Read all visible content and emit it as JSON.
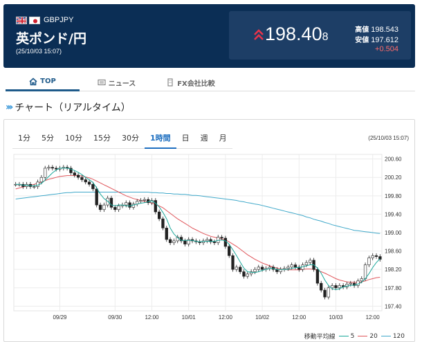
{
  "header": {
    "pair_code": "GBPJPY",
    "pair_name": "英ポンド/円",
    "timestamp": "(25/10/03 15:07)",
    "price_main": "198.40",
    "price_small": "8",
    "high_label": "高値",
    "high_value": "198.543",
    "low_label": "安値",
    "low_value": "197.612",
    "change": "+0.504",
    "up_color": "#e8334a"
  },
  "tabs": [
    {
      "label": "TOP",
      "icon": "home-icon",
      "active": true
    },
    {
      "label": "ニュース",
      "icon": "newspaper-icon",
      "active": false
    },
    {
      "label": "FX会社比較",
      "icon": "building-icon",
      "active": false
    }
  ],
  "section": {
    "title": "チャート（リアルタイム）"
  },
  "chart": {
    "range_tabs": [
      "1分",
      "5分",
      "10分",
      "15分",
      "30分",
      "1時間",
      "日",
      "週",
      "月"
    ],
    "active_range": "1時間",
    "timestamp": "(25/10/03 15:07)",
    "legend": {
      "label": "移動平均線",
      "items": [
        {
          "name": "5",
          "color": "#1aa79a"
        },
        {
          "name": "20",
          "color": "#e0555a"
        },
        {
          "name": "120",
          "color": "#3fa8c9"
        }
      ]
    }
  },
  "chart_data": {
    "type": "candlestick",
    "ylim": [
      197.3,
      200.7
    ],
    "yticks": [
      200.6,
      200.2,
      199.8,
      199.4,
      199.0,
      198.6,
      198.2,
      197.8,
      197.4
    ],
    "ytick_labels": [
      "200.60",
      "200.20",
      "199.80",
      "199.40",
      "199.00",
      "198.60",
      "198.20",
      "197.80",
      "197.40"
    ],
    "xticks": [
      {
        "label": "09/29",
        "index": 12
      },
      {
        "label": "09/30",
        "index": 27
      },
      {
        "label": "12:00",
        "index": 37
      },
      {
        "label": "10/01",
        "index": 47
      },
      {
        "label": "12:00",
        "index": 57
      },
      {
        "label": "10/02",
        "index": 67
      },
      {
        "label": "12:00",
        "index": 77
      },
      {
        "label": "10/03",
        "index": 87
      },
      {
        "label": "12:00",
        "index": 97
      }
    ],
    "n_candles": 100,
    "close": [
      200.05,
      200.05,
      200.0,
      200.05,
      200.0,
      200.0,
      200.1,
      200.2,
      200.4,
      200.42,
      200.4,
      200.38,
      200.4,
      200.42,
      200.4,
      200.3,
      200.25,
      200.2,
      200.15,
      200.1,
      200.05,
      199.95,
      199.6,
      199.5,
      199.6,
      199.75,
      199.55,
      199.5,
      199.58,
      199.6,
      199.65,
      199.55,
      199.62,
      199.68,
      199.7,
      199.72,
      199.65,
      199.7,
      199.45,
      199.3,
      199.1,
      198.85,
      198.78,
      198.82,
      198.9,
      198.82,
      198.75,
      198.85,
      198.82,
      198.8,
      198.78,
      198.82,
      198.85,
      198.8,
      198.78,
      198.9,
      198.88,
      198.7,
      198.5,
      198.2,
      198.25,
      198.15,
      198.05,
      198.1,
      198.15,
      198.2,
      198.25,
      198.2,
      198.22,
      198.25,
      198.2,
      198.15,
      198.2,
      198.22,
      198.25,
      198.3,
      198.25,
      198.2,
      198.3,
      198.35,
      198.4,
      198.2,
      197.9,
      197.75,
      197.6,
      197.8,
      197.85,
      197.8,
      197.85,
      197.82,
      197.88,
      197.9,
      197.85,
      197.95,
      198.0,
      198.3,
      198.45,
      198.5,
      198.48,
      198.42
    ],
    "ma5": [
      200.05,
      200.05,
      200.03,
      200.03,
      200.02,
      200.02,
      200.03,
      200.07,
      200.14,
      200.22,
      200.3,
      200.36,
      200.4,
      200.4,
      200.4,
      200.38,
      200.35,
      200.31,
      200.26,
      200.2,
      200.15,
      200.09,
      199.97,
      199.84,
      199.74,
      199.68,
      199.6,
      199.58,
      199.6,
      199.6,
      199.58,
      199.58,
      199.6,
      199.62,
      199.64,
      199.65,
      199.67,
      199.69,
      199.64,
      199.56,
      199.44,
      199.3,
      199.1,
      198.97,
      198.89,
      198.83,
      198.83,
      198.83,
      198.83,
      198.81,
      198.8,
      198.81,
      198.81,
      198.81,
      198.81,
      198.83,
      198.84,
      198.82,
      198.75,
      198.63,
      198.5,
      198.36,
      198.23,
      198.15,
      198.14,
      198.13,
      198.15,
      198.18,
      198.2,
      198.22,
      198.22,
      198.2,
      198.2,
      198.2,
      198.2,
      198.22,
      198.24,
      198.24,
      198.26,
      198.28,
      198.3,
      198.3,
      198.23,
      198.12,
      197.97,
      197.85,
      197.78,
      197.76,
      197.78,
      197.82,
      197.84,
      197.85,
      197.86,
      197.88,
      197.92,
      198.0,
      198.11,
      198.24,
      198.35,
      198.43
    ],
    "ma20": [
      199.95,
      199.97,
      199.99,
      200.01,
      200.03,
      200.05,
      200.07,
      200.1,
      200.13,
      200.16,
      200.18,
      200.2,
      200.22,
      200.23,
      200.24,
      200.24,
      200.24,
      200.24,
      200.23,
      200.21,
      200.19,
      200.16,
      200.12,
      200.08,
      200.04,
      200.0,
      199.96,
      199.92,
      199.88,
      199.84,
      199.8,
      199.77,
      199.74,
      199.72,
      199.7,
      199.68,
      199.66,
      199.64,
      199.62,
      199.58,
      199.54,
      199.48,
      199.42,
      199.36,
      199.3,
      199.25,
      199.2,
      199.15,
      199.1,
      199.06,
      199.02,
      198.98,
      198.95,
      198.92,
      198.9,
      198.88,
      198.86,
      198.84,
      198.8,
      198.75,
      198.7,
      198.64,
      198.58,
      198.52,
      198.47,
      198.42,
      198.38,
      198.34,
      198.31,
      198.28,
      198.25,
      198.23,
      198.21,
      198.2,
      198.19,
      198.19,
      198.19,
      198.19,
      198.2,
      198.21,
      198.21,
      198.2,
      198.18,
      198.15,
      198.12,
      198.08,
      198.04,
      198.0,
      197.97,
      197.95,
      197.93,
      197.92,
      197.92,
      197.92,
      197.93,
      197.95,
      197.98,
      198.0,
      198.02,
      198.03
    ],
    "ma120": [
      199.73,
      199.74,
      199.75,
      199.76,
      199.77,
      199.78,
      199.79,
      199.8,
      199.81,
      199.82,
      199.83,
      199.84,
      199.85,
      199.86,
      199.87,
      199.87,
      199.88,
      199.88,
      199.88,
      199.88,
      199.88,
      199.88,
      199.88,
      199.88,
      199.88,
      199.88,
      199.88,
      199.88,
      199.88,
      199.88,
      199.88,
      199.88,
      199.88,
      199.88,
      199.88,
      199.88,
      199.88,
      199.87,
      199.87,
      199.86,
      199.86,
      199.85,
      199.85,
      199.84,
      199.84,
      199.83,
      199.83,
      199.82,
      199.81,
      199.81,
      199.8,
      199.79,
      199.78,
      199.77,
      199.76,
      199.75,
      199.74,
      199.73,
      199.72,
      199.71,
      199.7,
      199.68,
      199.67,
      199.65,
      199.64,
      199.62,
      199.61,
      199.59,
      199.57,
      199.55,
      199.53,
      199.51,
      199.49,
      199.47,
      199.45,
      199.43,
      199.41,
      199.39,
      199.37,
      199.34,
      199.32,
      199.29,
      199.27,
      199.25,
      199.22,
      199.2,
      199.17,
      199.15,
      199.13,
      199.11,
      199.09,
      199.07,
      199.05,
      199.04,
      199.03,
      199.02,
      199.01,
      199.0,
      198.99,
      198.98
    ]
  }
}
